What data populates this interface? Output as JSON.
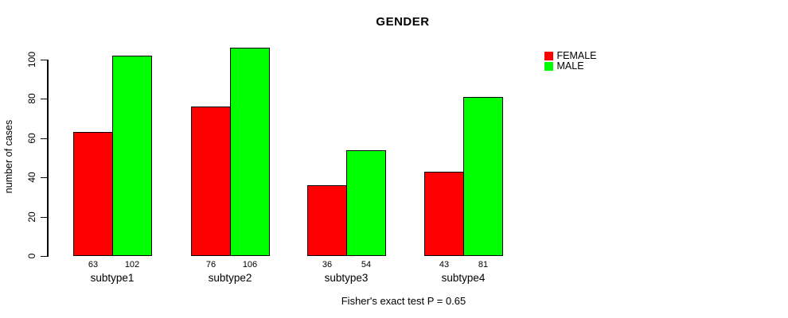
{
  "chart": {
    "title": "GENDER",
    "ylabel": "number of cases",
    "annotation": "Fisher's exact test P = 0.65"
  },
  "legend": {
    "items": [
      {
        "label": "FEMALE",
        "color": "#ff0000"
      },
      {
        "label": "MALE",
        "color": "#00ff00"
      }
    ]
  },
  "chart_data": {
    "type": "bar",
    "grouped": true,
    "title": "GENDER",
    "xlabel": "",
    "ylabel": "number of cases",
    "annotation": "Fisher's exact test P = 0.65",
    "categories": [
      "subtype1",
      "subtype2",
      "subtype3",
      "subtype4"
    ],
    "series": [
      {
        "name": "FEMALE",
        "color": "#ff0000",
        "values": [
          63,
          76,
          36,
          43
        ]
      },
      {
        "name": "MALE",
        "color": "#00ff00",
        "values": [
          102,
          106,
          54,
          81
        ]
      }
    ],
    "bar_value_labels": [
      [
        63,
        102
      ],
      [
        76,
        106
      ],
      [
        36,
        54
      ],
      [
        43,
        81
      ]
    ],
    "yticks": [
      0,
      20,
      40,
      60,
      80,
      100
    ],
    "ylim": [
      0,
      108
    ],
    "grid": false,
    "legend_position": "top-right"
  }
}
